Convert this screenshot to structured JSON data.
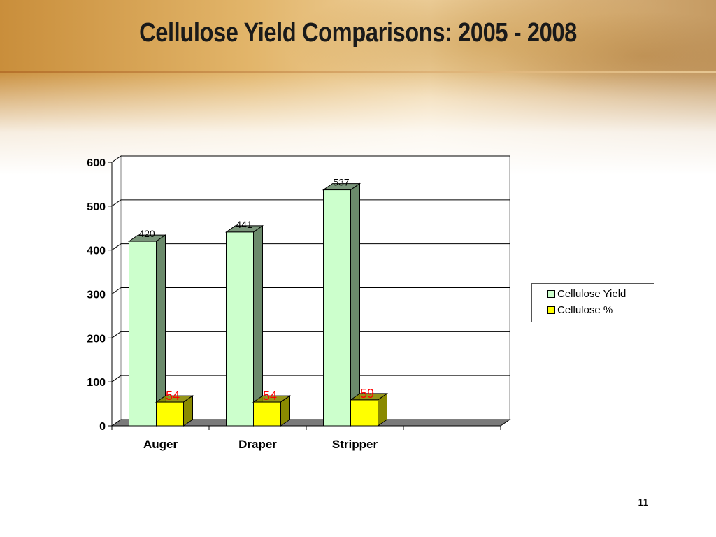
{
  "slide": {
    "title": "Cellulose Yield Comparisons:  2005 - 2008",
    "page_number": "11"
  },
  "colors": {
    "yield_face": "#ccffcc",
    "yield_side": "#6b8a6b",
    "percent_face": "#ffff00",
    "percent_side": "#8a8a00",
    "percent_label": "#ff0000",
    "floor": "#7a7a7a"
  },
  "chart_data": {
    "type": "bar",
    "style": "3d-clustered",
    "categories": [
      "Auger",
      "Draper",
      "Stripper"
    ],
    "series": [
      {
        "name": "Cellulose Yield",
        "values": [
          420,
          441,
          537
        ]
      },
      {
        "name": "Cellulose %",
        "values": [
          54,
          54,
          59
        ]
      }
    ],
    "data_labels": [
      [
        "420",
        "441",
        "537"
      ],
      [
        "54",
        "54",
        "59"
      ]
    ],
    "ylim": [
      0,
      600
    ],
    "yticks": [
      "0",
      "100",
      "200",
      "300",
      "400",
      "500",
      "600"
    ],
    "grid": true,
    "legend_position": "right"
  }
}
